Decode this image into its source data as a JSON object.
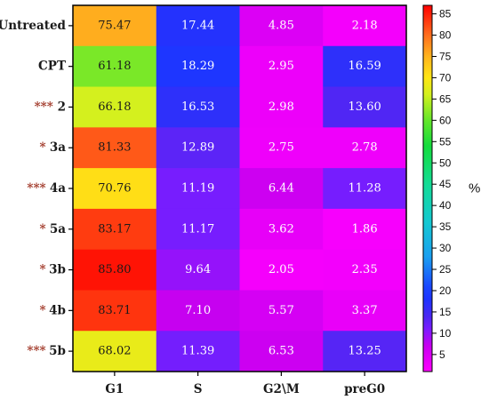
{
  "chart_data": {
    "type": "heatmap",
    "columns": [
      "G1",
      "S",
      "G2\\M",
      "preG0"
    ],
    "rows": [
      {
        "label": "Untreated",
        "sig": "",
        "values": [
          75.47,
          17.44,
          4.85,
          2.18
        ]
      },
      {
        "label": "CPT",
        "sig": "",
        "values": [
          61.18,
          18.29,
          2.95,
          16.59
        ]
      },
      {
        "label": "2",
        "sig": "***",
        "values": [
          66.18,
          16.53,
          2.98,
          13.6
        ]
      },
      {
        "label": "3a",
        "sig": "*",
        "values": [
          81.33,
          12.89,
          2.75,
          2.78
        ]
      },
      {
        "label": "4a",
        "sig": "***",
        "values": [
          70.76,
          11.19,
          6.44,
          11.28
        ]
      },
      {
        "label": "5a",
        "sig": "*",
        "values": [
          83.17,
          11.17,
          3.62,
          1.86
        ]
      },
      {
        "label": "3b",
        "sig": "*",
        "values": [
          85.8,
          9.64,
          2.05,
          2.35
        ]
      },
      {
        "label": "4b",
        "sig": "*",
        "values": [
          83.71,
          7.1,
          5.57,
          3.37
        ]
      },
      {
        "label": "5b",
        "sig": "***",
        "values": [
          68.02,
          11.39,
          6.53,
          13.25
        ]
      }
    ],
    "colorbar": {
      "title": "%",
      "range": [
        1,
        87
      ],
      "ticks": [
        5,
        10,
        15,
        20,
        25,
        30,
        35,
        40,
        45,
        50,
        55,
        60,
        65,
        70,
        75,
        80,
        85
      ],
      "colors": [
        {
          "v": 1,
          "c": "#ff00ff"
        },
        {
          "v": 7,
          "c": "#c800f0"
        },
        {
          "v": 11,
          "c": "#7a1cff"
        },
        {
          "v": 14,
          "c": "#4a28f2"
        },
        {
          "v": 18,
          "c": "#1e34ff"
        },
        {
          "v": 21,
          "c": "#1a48ff"
        },
        {
          "v": 28,
          "c": "#1aa0f0"
        },
        {
          "v": 36,
          "c": "#14c8d2"
        },
        {
          "v": 45,
          "c": "#14dc96"
        },
        {
          "v": 54,
          "c": "#14dc3c"
        },
        {
          "v": 60,
          "c": "#64e62a"
        },
        {
          "v": 66,
          "c": "#d2f01e"
        },
        {
          "v": 70,
          "c": "#ffe614"
        },
        {
          "v": 75,
          "c": "#ffb41e"
        },
        {
          "v": 80,
          "c": "#ff6e1e"
        },
        {
          "v": 87,
          "c": "#ff0000"
        }
      ]
    }
  }
}
